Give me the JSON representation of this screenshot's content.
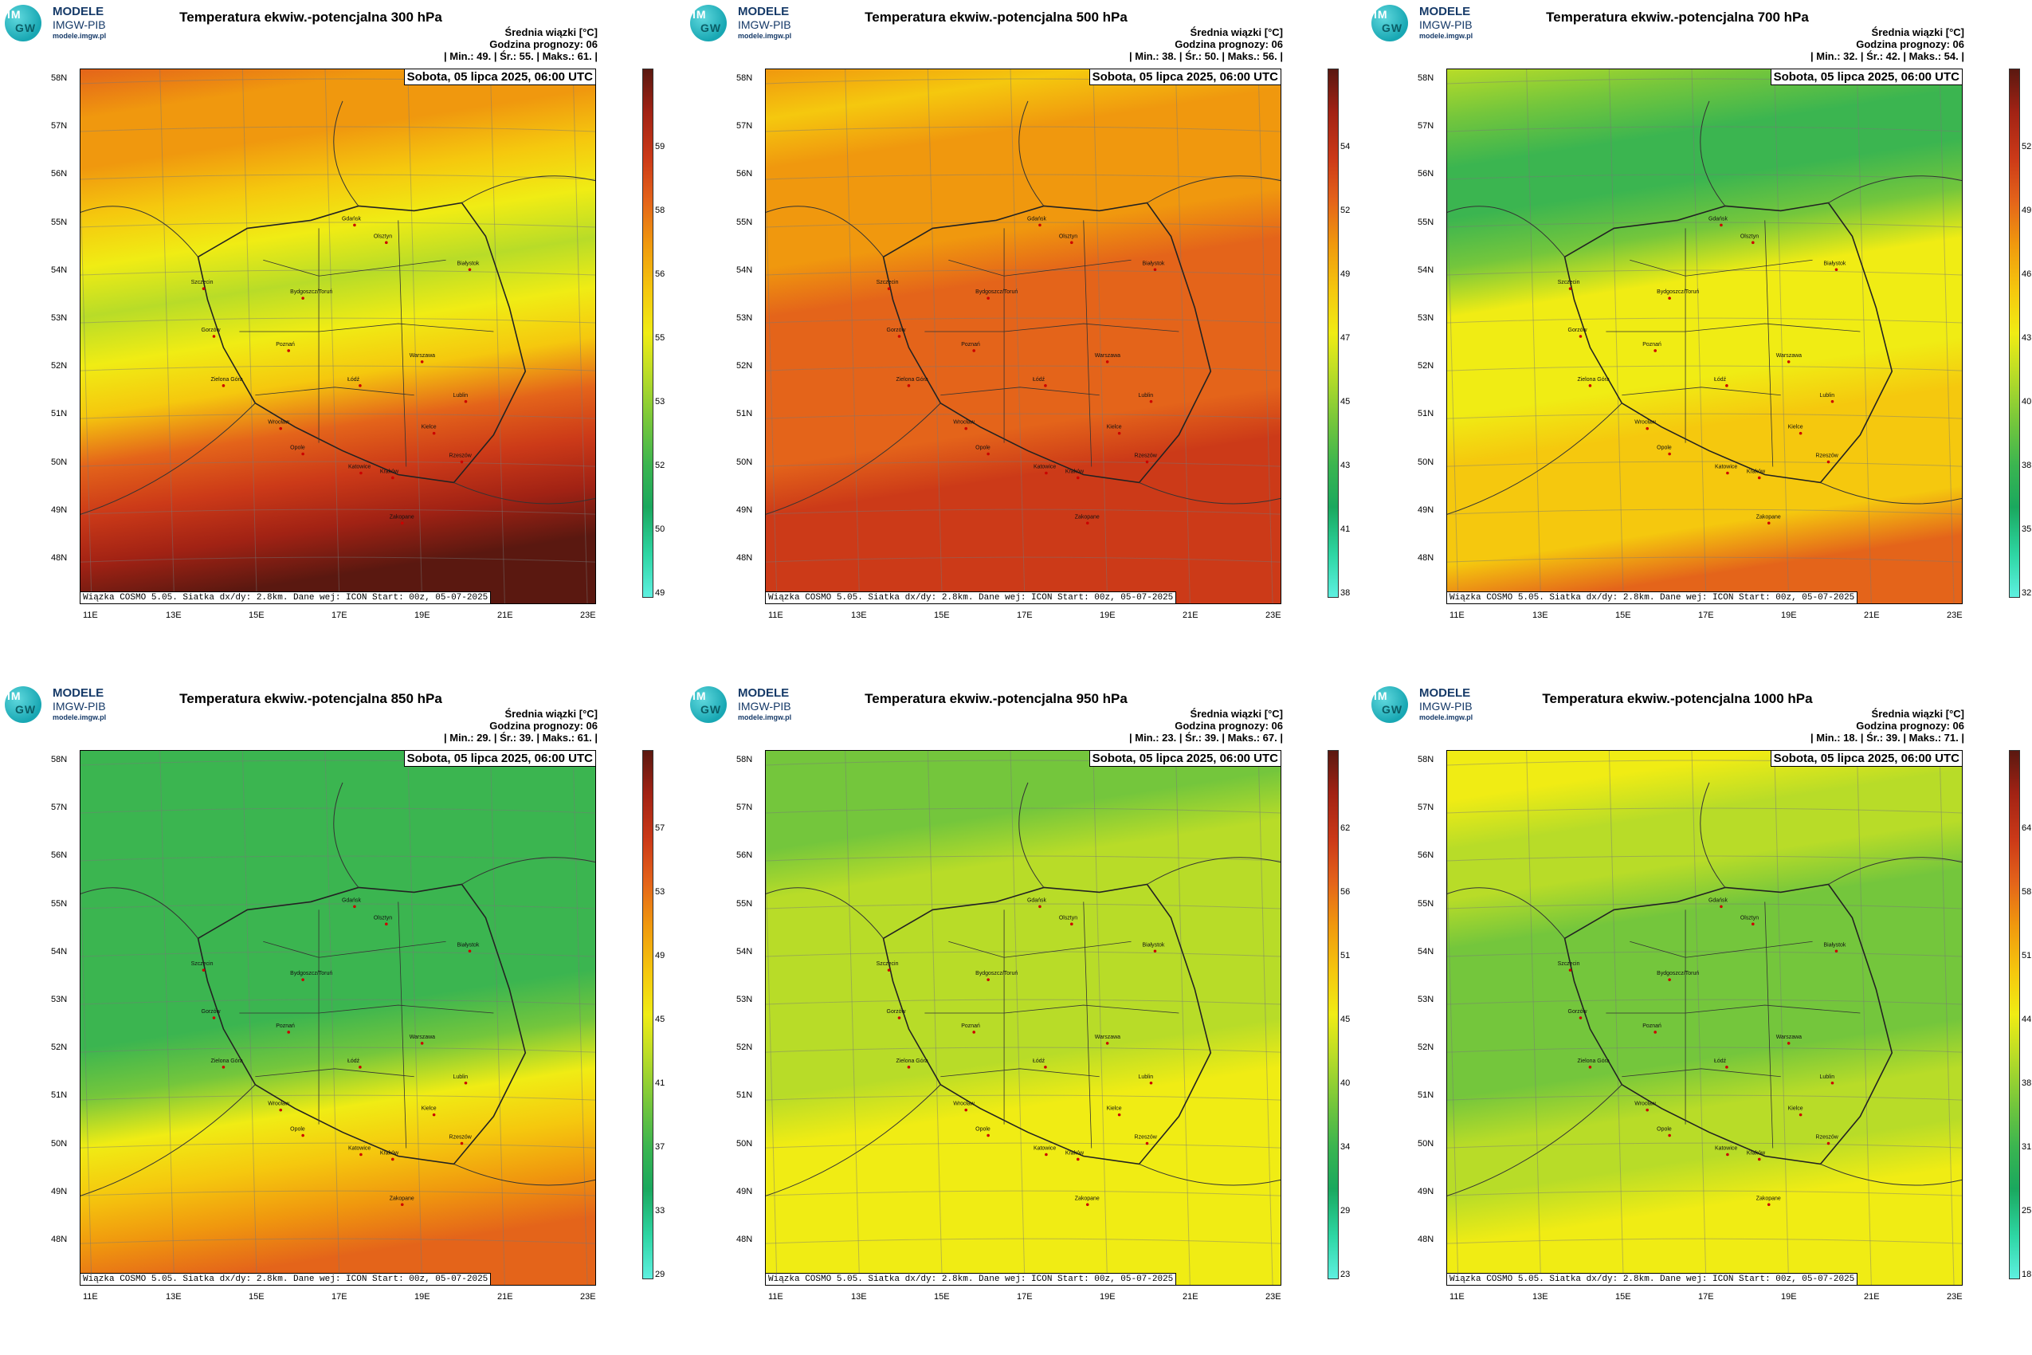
{
  "logo": {
    "im": "IM",
    "gw": "GW",
    "line1": "MODELE",
    "line2": "IMGW-PIB",
    "line3": "modele.imgw.pl"
  },
  "labels": {
    "mean": "Średnia wiązki [°C]",
    "forecast": "Godzina prognozy: 06",
    "date": "Sobota, 05 lipca 2025, 06:00 UTC",
    "footer": "Wiązka COSMO 5.05. Siatka dx/dy: 2.8km. Dane wej: ICON Start: 00z, 05-07-2025"
  },
  "lat_labels": [
    "58N",
    "57N",
    "56N",
    "55N",
    "54N",
    "53N",
    "52N",
    "51N",
    "50N",
    "49N",
    "48N"
  ],
  "lon_labels": [
    "11E",
    "13E",
    "15E",
    "17E",
    "19E",
    "21E",
    "23E"
  ],
  "cities": [
    "Gdańsk",
    "Olsztyn",
    "Białystok",
    "Szczecin",
    "Bydgoszcz/Toruń",
    "Gorzów",
    "Poznań",
    "Warszawa",
    "Zielona Góra",
    "Łódź",
    "Lublin",
    "Wrocław",
    "Kielce",
    "Opole",
    "Rzeszów",
    "Katowice",
    "Kraków",
    "Zakopane"
  ],
  "colors": {
    "scale": [
      "#5ef0e0",
      "#2ed6a4",
      "#1aa85e",
      "#3bb550",
      "#74c63c",
      "#b8dc28",
      "#f0ec14",
      "#f5c80e",
      "#f0980e",
      "#e4641a",
      "#cc3a18",
      "#a12214",
      "#5a1810"
    ]
  },
  "panels": [
    {
      "title": "Temperatura ekwiw.-potencjalna 300 hPa",
      "stats": "| Min.:    49. | Śr.:    55. | Maks.:    61. |",
      "cbar": [
        "59",
        "58",
        "56",
        "55",
        "53",
        "52",
        "50",
        "49"
      ],
      "bands": [
        9,
        8,
        8,
        7,
        6,
        5,
        6,
        7,
        9,
        10,
        11,
        12
      ]
    },
    {
      "title": "Temperatura ekwiw.-potencjalna 500 hPa",
      "stats": "| Min.:    38. | Śr.:    50. | Maks.:    56. |",
      "cbar": [
        "54",
        "52",
        "49",
        "47",
        "45",
        "43",
        "41",
        "38"
      ],
      "bands": [
        8,
        7,
        8,
        8,
        8,
        9,
        9,
        9,
        9,
        10,
        10,
        10
      ]
    },
    {
      "title": "Temperatura ekwiw.-potencjalna 700 hPa",
      "stats": "| Min.:    32. | Śr.:    42. | Maks.:    54. |",
      "cbar": [
        "52",
        "49",
        "46",
        "43",
        "40",
        "38",
        "35",
        "32"
      ],
      "bands": [
        5,
        4,
        3,
        3,
        4,
        6,
        6,
        6,
        7,
        7,
        7,
        9
      ]
    },
    {
      "title": "Temperatura ekwiw.-potencjalna 850 hPa",
      "stats": "| Min.:    29. | Śr.:    39. | Maks.:    61. |",
      "cbar": [
        "57",
        "53",
        "49",
        "45",
        "41",
        "37",
        "33",
        "29"
      ],
      "bands": [
        3,
        3,
        3,
        3,
        3,
        3,
        3,
        4,
        6,
        7,
        8,
        9
      ]
    },
    {
      "title": "Temperatura ekwiw.-potencjalna 950 hPa",
      "stats": "| Min.:    23. | Śr.:    39. | Maks.:    67. |",
      "cbar": [
        "62",
        "56",
        "51",
        "45",
        "40",
        "34",
        "29",
        "23"
      ],
      "bands": [
        4,
        4,
        4,
        5,
        5,
        5,
        5,
        5,
        6,
        6,
        6,
        6
      ]
    },
    {
      "title": "Temperatura ekwiw.-potencjalna 1000 hPa",
      "stats": "| Min.:    18. | Śr.:    39. | Maks.:    71. |",
      "cbar": [
        "64",
        "58",
        "51",
        "44",
        "38",
        "31",
        "25",
        "18"
      ],
      "bands": [
        6,
        6,
        5,
        5,
        4,
        4,
        4,
        4,
        5,
        5,
        6,
        6
      ]
    }
  ]
}
